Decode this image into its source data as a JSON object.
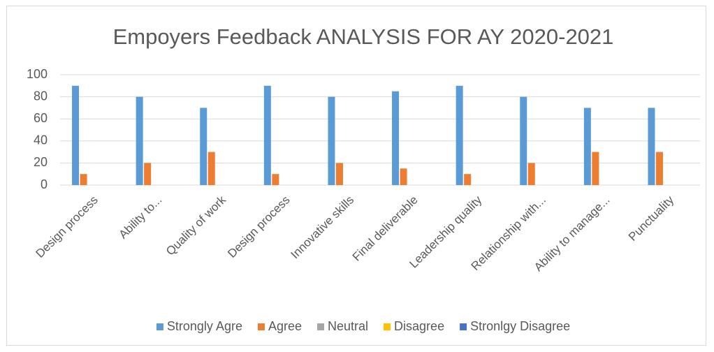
{
  "chart_data": {
    "type": "bar",
    "title": "Empoyers Feedback ANALYSIS FOR AY 2020-2021",
    "categories": [
      "Design process",
      "Ability to...",
      "Quality of work",
      "Design process",
      "Innovative skills",
      "Final deliverable",
      "Leadership quality",
      "Relationship with...",
      "Ability to manage...",
      "Punctuality"
    ],
    "series": [
      {
        "name": "Strongly Agre",
        "color": "#5b9bd5",
        "values": [
          90,
          80,
          70,
          90,
          80,
          85,
          90,
          80,
          70,
          70
        ]
      },
      {
        "name": "Agree",
        "color": "#ed7d31",
        "values": [
          10,
          20,
          30,
          10,
          20,
          15,
          10,
          20,
          30,
          30
        ]
      },
      {
        "name": "Neutral",
        "color": "#a5a5a5",
        "values": [
          0,
          0,
          0,
          0,
          0,
          0,
          0,
          0,
          0,
          0
        ]
      },
      {
        "name": "Disagree",
        "color": "#ffc000",
        "values": [
          0,
          0,
          0,
          0,
          0,
          0,
          0,
          0,
          0,
          0
        ]
      },
      {
        "name": "Stronlgy Disagree",
        "color": "#4472c4",
        "values": [
          0,
          0,
          0,
          0,
          0,
          0,
          0,
          0,
          0,
          0
        ]
      }
    ],
    "ylim": [
      0,
      100
    ],
    "yticks": [
      0,
      20,
      40,
      60,
      80,
      100
    ],
    "grid": true,
    "legend": "bottom"
  }
}
